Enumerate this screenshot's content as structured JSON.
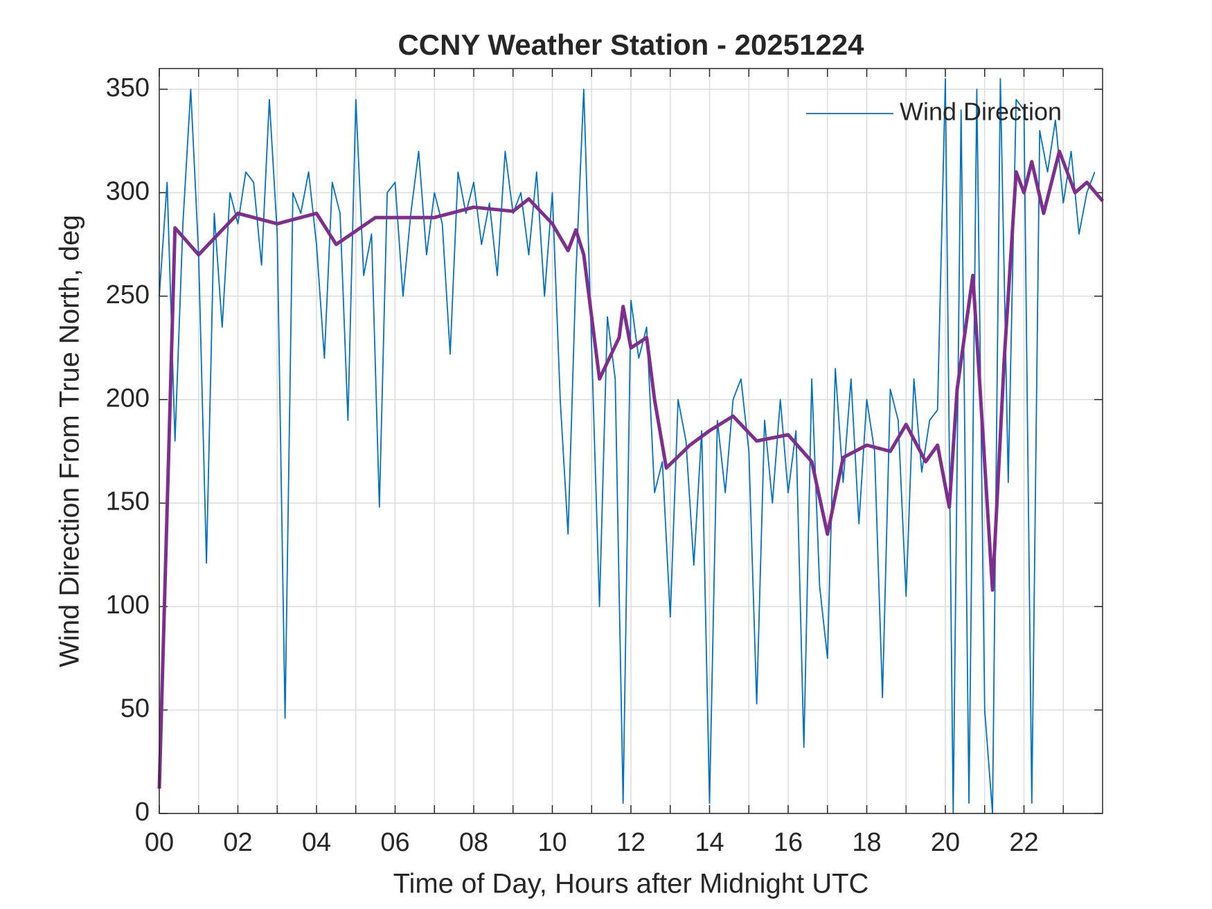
{
  "chart_data": {
    "type": "line",
    "title": "CCNY Weather Station - 20251224",
    "xlabel": "Time of Day, Hours after Midnight UTC",
    "ylabel": "Wind Direction From True North, deg",
    "xlim": [
      0,
      24
    ],
    "xticks": [
      {
        "value": 0,
        "label": "00"
      },
      {
        "value": 2,
        "label": "02"
      },
      {
        "value": 4,
        "label": "04"
      },
      {
        "value": 6,
        "label": "06"
      },
      {
        "value": 8,
        "label": "08"
      },
      10,
      12,
      14,
      16,
      18,
      20,
      22
    ],
    "xminorticks": [
      1,
      3,
      5,
      7,
      9,
      11,
      13,
      15,
      17,
      19,
      21,
      23
    ],
    "ylim": [
      0,
      360
    ],
    "yticks": [
      0,
      50,
      100,
      150,
      200,
      250,
      300,
      350
    ],
    "grid": true,
    "legend": "northeast",
    "series": [
      {
        "name": "Wind Direction",
        "color": "#0072bd",
        "x": [
          0,
          0.2,
          0.4,
          0.6,
          0.8,
          1,
          1.2,
          1.4,
          1.6,
          1.8,
          2,
          2.2,
          2.4,
          2.6,
          2.8,
          3,
          3.2,
          3.4,
          3.6,
          3.8,
          4,
          4.2,
          4.4,
          4.6,
          4.8,
          5,
          5.2,
          5.4,
          5.6,
          5.8,
          6,
          6.2,
          6.4,
          6.6,
          6.8,
          7,
          7.2,
          7.4,
          7.6,
          7.8,
          8,
          8.2,
          8.4,
          8.6,
          8.8,
          9,
          9.2,
          9.4,
          9.6,
          9.8,
          10,
          10.2,
          10.4,
          10.6,
          10.8,
          11,
          11.2,
          11.4,
          11.6,
          11.8,
          12,
          12.2,
          12.4,
          12.6,
          12.8,
          13,
          13.2,
          13.4,
          13.6,
          13.8,
          14,
          14.2,
          14.4,
          14.6,
          14.8,
          15,
          15.2,
          15.4,
          15.6,
          15.8,
          16,
          16.2,
          16.4,
          16.6,
          16.8,
          17,
          17.2,
          17.4,
          17.6,
          17.8,
          18,
          18.2,
          18.4,
          18.6,
          18.8,
          19,
          19.2,
          19.4,
          19.6,
          19.8,
          20,
          20.2,
          20.4,
          20.6,
          20.8,
          21,
          21.2,
          21.4,
          21.6,
          21.8,
          22,
          22.2,
          22.4,
          22.6,
          22.8,
          23,
          23.2,
          23.4,
          23.6,
          23.8
        ],
        "values": [
          250,
          305,
          180,
          285,
          350,
          270,
          121,
          290,
          235,
          300,
          285,
          310,
          305,
          265,
          345,
          280,
          46,
          300,
          290,
          310,
          275,
          220,
          305,
          290,
          190,
          345,
          260,
          280,
          148,
          300,
          305,
          250,
          290,
          320,
          270,
          300,
          285,
          222,
          310,
          290,
          305,
          275,
          295,
          260,
          320,
          290,
          300,
          270,
          310,
          250,
          300,
          200,
          135,
          260,
          350,
          225,
          100,
          240,
          210,
          5,
          248,
          220,
          235,
          155,
          170,
          95,
          200,
          180,
          120,
          185,
          5,
          190,
          155,
          200,
          210,
          175,
          53,
          190,
          150,
          200,
          155,
          185,
          32,
          210,
          110,
          75,
          215,
          160,
          210,
          140,
          200,
          175,
          56,
          205,
          190,
          105,
          210,
          165,
          190,
          195,
          355,
          0,
          340,
          5,
          350,
          50,
          0,
          355,
          160,
          345,
          340,
          5,
          330,
          310,
          335,
          295,
          320,
          280,
          300,
          310
        ]
      },
      {
        "color": "#7e2f8e",
        "x": [
          0,
          0.4,
          1,
          2,
          3,
          4,
          4.5,
          5.5,
          7,
          8,
          9,
          9.4,
          10,
          10.4,
          10.6,
          10.8,
          11.2,
          11.7,
          11.8,
          12,
          12.4,
          12.6,
          12.9,
          13.5,
          14,
          14.6,
          15.2,
          16,
          16.6,
          17,
          17.4,
          18,
          18.6,
          19,
          19.5,
          19.8,
          20.1,
          20.3,
          20.7,
          20.9,
          21.2,
          21.5,
          21.8,
          22,
          22.2,
          22.5,
          22.9,
          23.3,
          23.6,
          24
        ],
        "values": [
          12,
          283,
          270,
          290,
          285,
          290,
          275,
          288,
          288,
          293,
          291,
          297,
          285,
          272,
          282,
          270,
          210,
          230,
          245,
          225,
          230,
          200,
          167,
          178,
          185,
          192,
          180,
          183,
          170,
          135,
          172,
          178,
          175,
          188,
          170,
          178,
          148,
          205,
          260,
          200,
          108,
          220,
          310,
          300,
          315,
          290,
          320,
          300,
          305,
          296
        ]
      }
    ]
  }
}
